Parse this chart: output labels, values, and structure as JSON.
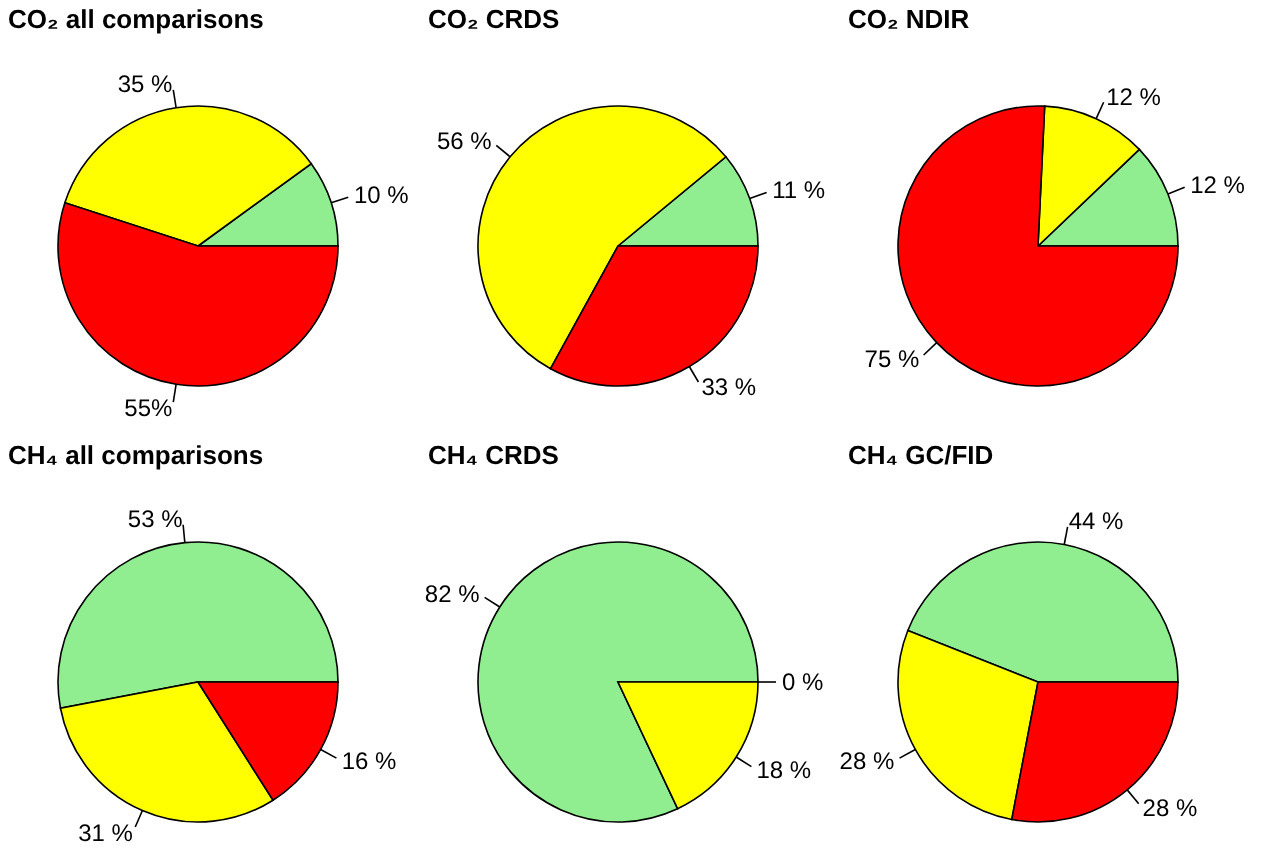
{
  "chart_data": [
    {
      "type": "pie",
      "title": "CO₂ all comparisons",
      "categories": [
        null,
        null,
        null
      ],
      "values": [
        10,
        35,
        55
      ],
      "colors": [
        "#90ee90",
        "#ffff00",
        "#ff0000"
      ],
      "value_labels": [
        "10 %",
        "35 %",
        "55%"
      ]
    },
    {
      "type": "pie",
      "title": "CO₂ CRDS",
      "categories": [
        null,
        null,
        null
      ],
      "values": [
        11,
        56,
        33
      ],
      "colors": [
        "#90ee90",
        "#ffff00",
        "#ff0000"
      ],
      "value_labels": [
        "11 %",
        "56 %",
        "33 %"
      ]
    },
    {
      "type": "pie",
      "title": "CO₂ NDIR",
      "categories": [
        null,
        null,
        null
      ],
      "values": [
        12,
        12,
        75
      ],
      "colors": [
        "#90ee90",
        "#ffff00",
        "#ff0000"
      ],
      "value_labels": [
        "12 %",
        "12 %",
        "75 %"
      ]
    },
    {
      "type": "pie",
      "title": "CH₄ all comparisons",
      "categories": [
        null,
        null,
        null
      ],
      "values": [
        53,
        31,
        16
      ],
      "colors": [
        "#90ee90",
        "#ffff00",
        "#ff0000"
      ],
      "value_labels": [
        "53 %",
        "31 %",
        "16 %"
      ]
    },
    {
      "type": "pie",
      "title": "CH₄ CRDS",
      "categories": [
        null,
        null,
        null
      ],
      "values": [
        82,
        18,
        0
      ],
      "colors": [
        "#90ee90",
        "#ffff00",
        "#ff0000"
      ],
      "value_labels": [
        "82 %",
        "18 %",
        "0 %"
      ]
    },
    {
      "type": "pie",
      "title": "CH₄ GC/FID",
      "categories": [
        null,
        null,
        null
      ],
      "values": [
        44,
        28,
        28
      ],
      "colors": [
        "#90ee90",
        "#ffff00",
        "#ff0000"
      ],
      "value_labels": [
        "44 %",
        "28 %",
        "28 %"
      ]
    }
  ]
}
